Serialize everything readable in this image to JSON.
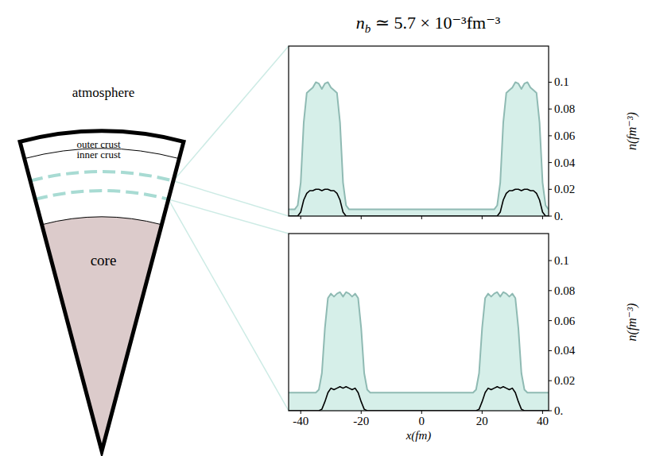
{
  "diagram": {
    "layers": [
      "atmosphere",
      "outer crust",
      "inner crust",
      "core"
    ]
  },
  "chart_data": [
    {
      "type": "area",
      "title": "nb ≃ 5.7 × 10⁻³fm⁻³",
      "y_label": "n(fm⁻³)",
      "xlim": [
        -44,
        42
      ],
      "ylim": [
        0,
        0.127
      ],
      "xticks": [
        -40,
        -20,
        0,
        20,
        40
      ],
      "yticks": [
        {
          "value": 0,
          "label": "0."
        },
        0.02,
        0.04,
        0.06,
        0.08,
        0.1
      ],
      "tick_labels": "y",
      "x": [
        -44,
        -43,
        -42,
        -41,
        -40,
        -39,
        -38,
        -37,
        -36,
        -35,
        -34,
        -33,
        -32,
        -31,
        -30,
        -29,
        -28,
        -27,
        -26,
        -25,
        -24,
        -23,
        -22,
        -21,
        -20,
        -19,
        -18,
        -17,
        -16,
        -15,
        -14,
        -13,
        -12,
        -11,
        -10,
        -9,
        -8,
        -7,
        -6,
        -5,
        -4,
        -3,
        -2,
        -1,
        0,
        1,
        2,
        3,
        4,
        5,
        6,
        7,
        8,
        9,
        10,
        11,
        12,
        13,
        14,
        15,
        16,
        17,
        18,
        19,
        20,
        21,
        22,
        23,
        24,
        25,
        26,
        27,
        28,
        29,
        30,
        31,
        32,
        33,
        34,
        35,
        36,
        37,
        38,
        39,
        40,
        41,
        42
      ],
      "series": [
        {
          "type": "area",
          "color": "#8fbab3",
          "values": [
            0.005,
            0.005,
            0.005,
            0.008,
            0.025,
            0.07,
            0.092,
            0.094,
            0.096,
            0.1,
            0.099,
            0.095,
            0.099,
            0.1,
            0.096,
            0.094,
            0.092,
            0.07,
            0.025,
            0.008,
            0.005,
            0.005,
            0.005,
            0.005,
            0.005,
            0.005,
            0.005,
            0.005,
            0.005,
            0.005,
            0.005,
            0.005,
            0.005,
            0.005,
            0.005,
            0.005,
            0.005,
            0.005,
            0.005,
            0.005,
            0.005,
            0.005,
            0.005,
            0.005,
            0.005,
            0.005,
            0.005,
            0.005,
            0.005,
            0.005,
            0.005,
            0.005,
            0.005,
            0.005,
            0.005,
            0.005,
            0.005,
            0.005,
            0.005,
            0.005,
            0.005,
            0.005,
            0.005,
            0.005,
            0.005,
            0.005,
            0.005,
            0.005,
            0.005,
            0.008,
            0.025,
            0.07,
            0.092,
            0.094,
            0.096,
            0.1,
            0.099,
            0.095,
            0.099,
            0.1,
            0.096,
            0.094,
            0.092,
            0.07,
            0.025,
            0.008,
            0.005
          ]
        },
        {
          "type": "line",
          "color": "#000000",
          "values": [
            0,
            0,
            0,
            0,
            0.003,
            0.012,
            0.017,
            0.019,
            0.019,
            0.02,
            0.02,
            0.019,
            0.02,
            0.02,
            0.019,
            0.019,
            0.017,
            0.012,
            0.003,
            0,
            0,
            0,
            0,
            0,
            0,
            0,
            0,
            0,
            0,
            0,
            0,
            0,
            0,
            0,
            0,
            0,
            0,
            0,
            0,
            0,
            0,
            0,
            0,
            0,
            0,
            0,
            0,
            0,
            0,
            0,
            0,
            0,
            0,
            0,
            0,
            0,
            0,
            0,
            0,
            0,
            0,
            0,
            0,
            0,
            0,
            0,
            0,
            0,
            0,
            0,
            0.003,
            0.012,
            0.017,
            0.019,
            0.019,
            0.02,
            0.02,
            0.019,
            0.02,
            0.02,
            0.019,
            0.019,
            0.017,
            0.012,
            0.003,
            0,
            0
          ]
        }
      ]
    },
    {
      "type": "area",
      "x_label": "x(fm)",
      "y_label": "n(fm⁻³)",
      "xlim": [
        -44,
        42
      ],
      "ylim": [
        0,
        0.118
      ],
      "xticks": [
        -40,
        -20,
        0,
        20,
        40
      ],
      "yticks": [
        {
          "value": 0,
          "label": "0."
        },
        0.02,
        0.04,
        0.06,
        0.08,
        0.1
      ],
      "x": [
        -44,
        -43,
        -42,
        -41,
        -40,
        -39,
        -38,
        -37,
        -36,
        -35,
        -34,
        -33,
        -32,
        -31,
        -30,
        -29,
        -28,
        -27,
        -26,
        -25,
        -24,
        -23,
        -22,
        -21,
        -20,
        -19,
        -18,
        -17,
        -16,
        -15,
        -14,
        -13,
        -12,
        -11,
        -10,
        -9,
        -8,
        -7,
        -6,
        -5,
        -4,
        -3,
        -2,
        -1,
        0,
        1,
        2,
        3,
        4,
        5,
        6,
        7,
        8,
        9,
        10,
        11,
        12,
        13,
        14,
        15,
        16,
        17,
        18,
        19,
        20,
        21,
        22,
        23,
        24,
        25,
        26,
        27,
        28,
        29,
        30,
        31,
        32,
        33,
        34,
        35,
        36,
        37,
        38,
        39,
        40,
        41,
        42
      ],
      "series": [
        {
          "type": "area",
          "color": "#8fbab3",
          "values": [
            0.012,
            0.012,
            0.012,
            0.012,
            0.012,
            0.012,
            0.012,
            0.012,
            0.012,
            0.012,
            0.014,
            0.025,
            0.055,
            0.075,
            0.078,
            0.076,
            0.078,
            0.079,
            0.076,
            0.079,
            0.078,
            0.076,
            0.078,
            0.075,
            0.055,
            0.025,
            0.014,
            0.012,
            0.012,
            0.012,
            0.012,
            0.012,
            0.012,
            0.012,
            0.012,
            0.012,
            0.012,
            0.012,
            0.012,
            0.012,
            0.012,
            0.012,
            0.012,
            0.012,
            0.012,
            0.012,
            0.012,
            0.012,
            0.012,
            0.012,
            0.012,
            0.012,
            0.012,
            0.012,
            0.012,
            0.012,
            0.012,
            0.012,
            0.012,
            0.012,
            0.012,
            0.012,
            0.014,
            0.025,
            0.055,
            0.075,
            0.078,
            0.076,
            0.078,
            0.079,
            0.076,
            0.079,
            0.078,
            0.076,
            0.078,
            0.075,
            0.055,
            0.025,
            0.014,
            0.012,
            0.012,
            0.012,
            0.012,
            0.012,
            0.012,
            0.012,
            0.012
          ]
        },
        {
          "type": "line",
          "color": "#000000",
          "values": [
            0,
            0,
            0,
            0,
            0,
            0,
            0,
            0,
            0,
            0,
            0,
            0.001,
            0.006,
            0.012,
            0.015,
            0.014,
            0.015,
            0.016,
            0.015,
            0.016,
            0.015,
            0.014,
            0.015,
            0.012,
            0.006,
            0.001,
            0,
            0,
            0,
            0,
            0,
            0,
            0,
            0,
            0,
            0,
            0,
            0,
            0,
            0,
            0,
            0,
            0,
            0,
            0,
            0,
            0,
            0,
            0,
            0,
            0,
            0,
            0,
            0,
            0,
            0,
            0,
            0,
            0,
            0,
            0,
            0,
            0,
            0.001,
            0.006,
            0.012,
            0.015,
            0.014,
            0.015,
            0.016,
            0.015,
            0.016,
            0.015,
            0.014,
            0.015,
            0.012,
            0.006,
            0.001,
            0,
            0,
            0,
            0,
            0,
            0,
            0,
            0,
            0
          ]
        }
      ]
    }
  ]
}
